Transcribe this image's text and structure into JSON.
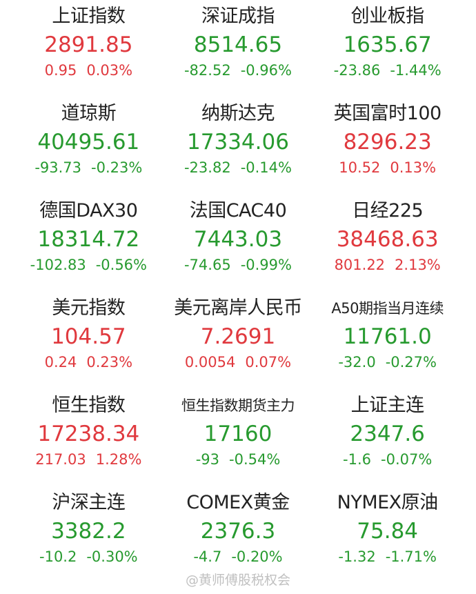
{
  "colors": {
    "up": "#e0393e",
    "down": "#279a2f"
  },
  "items": [
    {
      "name": "上证指数",
      "value": "2891.85",
      "change": "0.95",
      "pct": "0.03%",
      "dir": "up"
    },
    {
      "name": "深证成指",
      "value": "8514.65",
      "change": "-82.52",
      "pct": "-0.96%",
      "dir": "down"
    },
    {
      "name": "创业板指",
      "value": "1635.67",
      "change": "-23.86",
      "pct": "-1.44%",
      "dir": "down"
    },
    {
      "name": "道琼斯",
      "value": "40495.61",
      "change": "-93.73",
      "pct": "-0.23%",
      "dir": "down"
    },
    {
      "name": "纳斯达克",
      "value": "17334.06",
      "change": "-23.82",
      "pct": "-0.14%",
      "dir": "down"
    },
    {
      "name": "英国富时100",
      "value": "8296.23",
      "change": "10.52",
      "pct": "0.13%",
      "dir": "up"
    },
    {
      "name": "德国DAX30",
      "value": "18314.72",
      "change": "-102.83",
      "pct": "-0.56%",
      "dir": "down"
    },
    {
      "name": "法国CAC40",
      "value": "7443.03",
      "change": "-74.65",
      "pct": "-0.99%",
      "dir": "down"
    },
    {
      "name": "日经225",
      "value": "38468.63",
      "change": "801.22",
      "pct": "2.13%",
      "dir": "up"
    },
    {
      "name": "美元指数",
      "value": "104.57",
      "change": "0.24",
      "pct": "0.23%",
      "dir": "up"
    },
    {
      "name": "美元离岸人民币",
      "value": "7.2691",
      "change": "0.0054",
      "pct": "0.07%",
      "dir": "up"
    },
    {
      "name": "A50期指当月连续",
      "value": "11761.0",
      "change": "-32.0",
      "pct": "-0.27%",
      "dir": "down",
      "small": true
    },
    {
      "name": "恒生指数",
      "value": "17238.34",
      "change": "217.03",
      "pct": "1.28%",
      "dir": "up"
    },
    {
      "name": "恒生指数期货主力",
      "value": "17160",
      "change": "-93",
      "pct": "-0.54%",
      "dir": "down",
      "small": true
    },
    {
      "name": "上证主连",
      "value": "2347.6",
      "change": "-1.6",
      "pct": "-0.07%",
      "dir": "down"
    },
    {
      "name": "沪深主连",
      "value": "3382.2",
      "change": "-10.2",
      "pct": "-0.30%",
      "dir": "down"
    },
    {
      "name": "COMEX黄金",
      "value": "2376.3",
      "change": "-4.7",
      "pct": "-0.20%",
      "dir": "down"
    },
    {
      "name": "NYMEX原油",
      "value": "75.84",
      "change": "-1.32",
      "pct": "-1.71%",
      "dir": "down"
    }
  ],
  "watermark": "@黄师傅股税权会"
}
